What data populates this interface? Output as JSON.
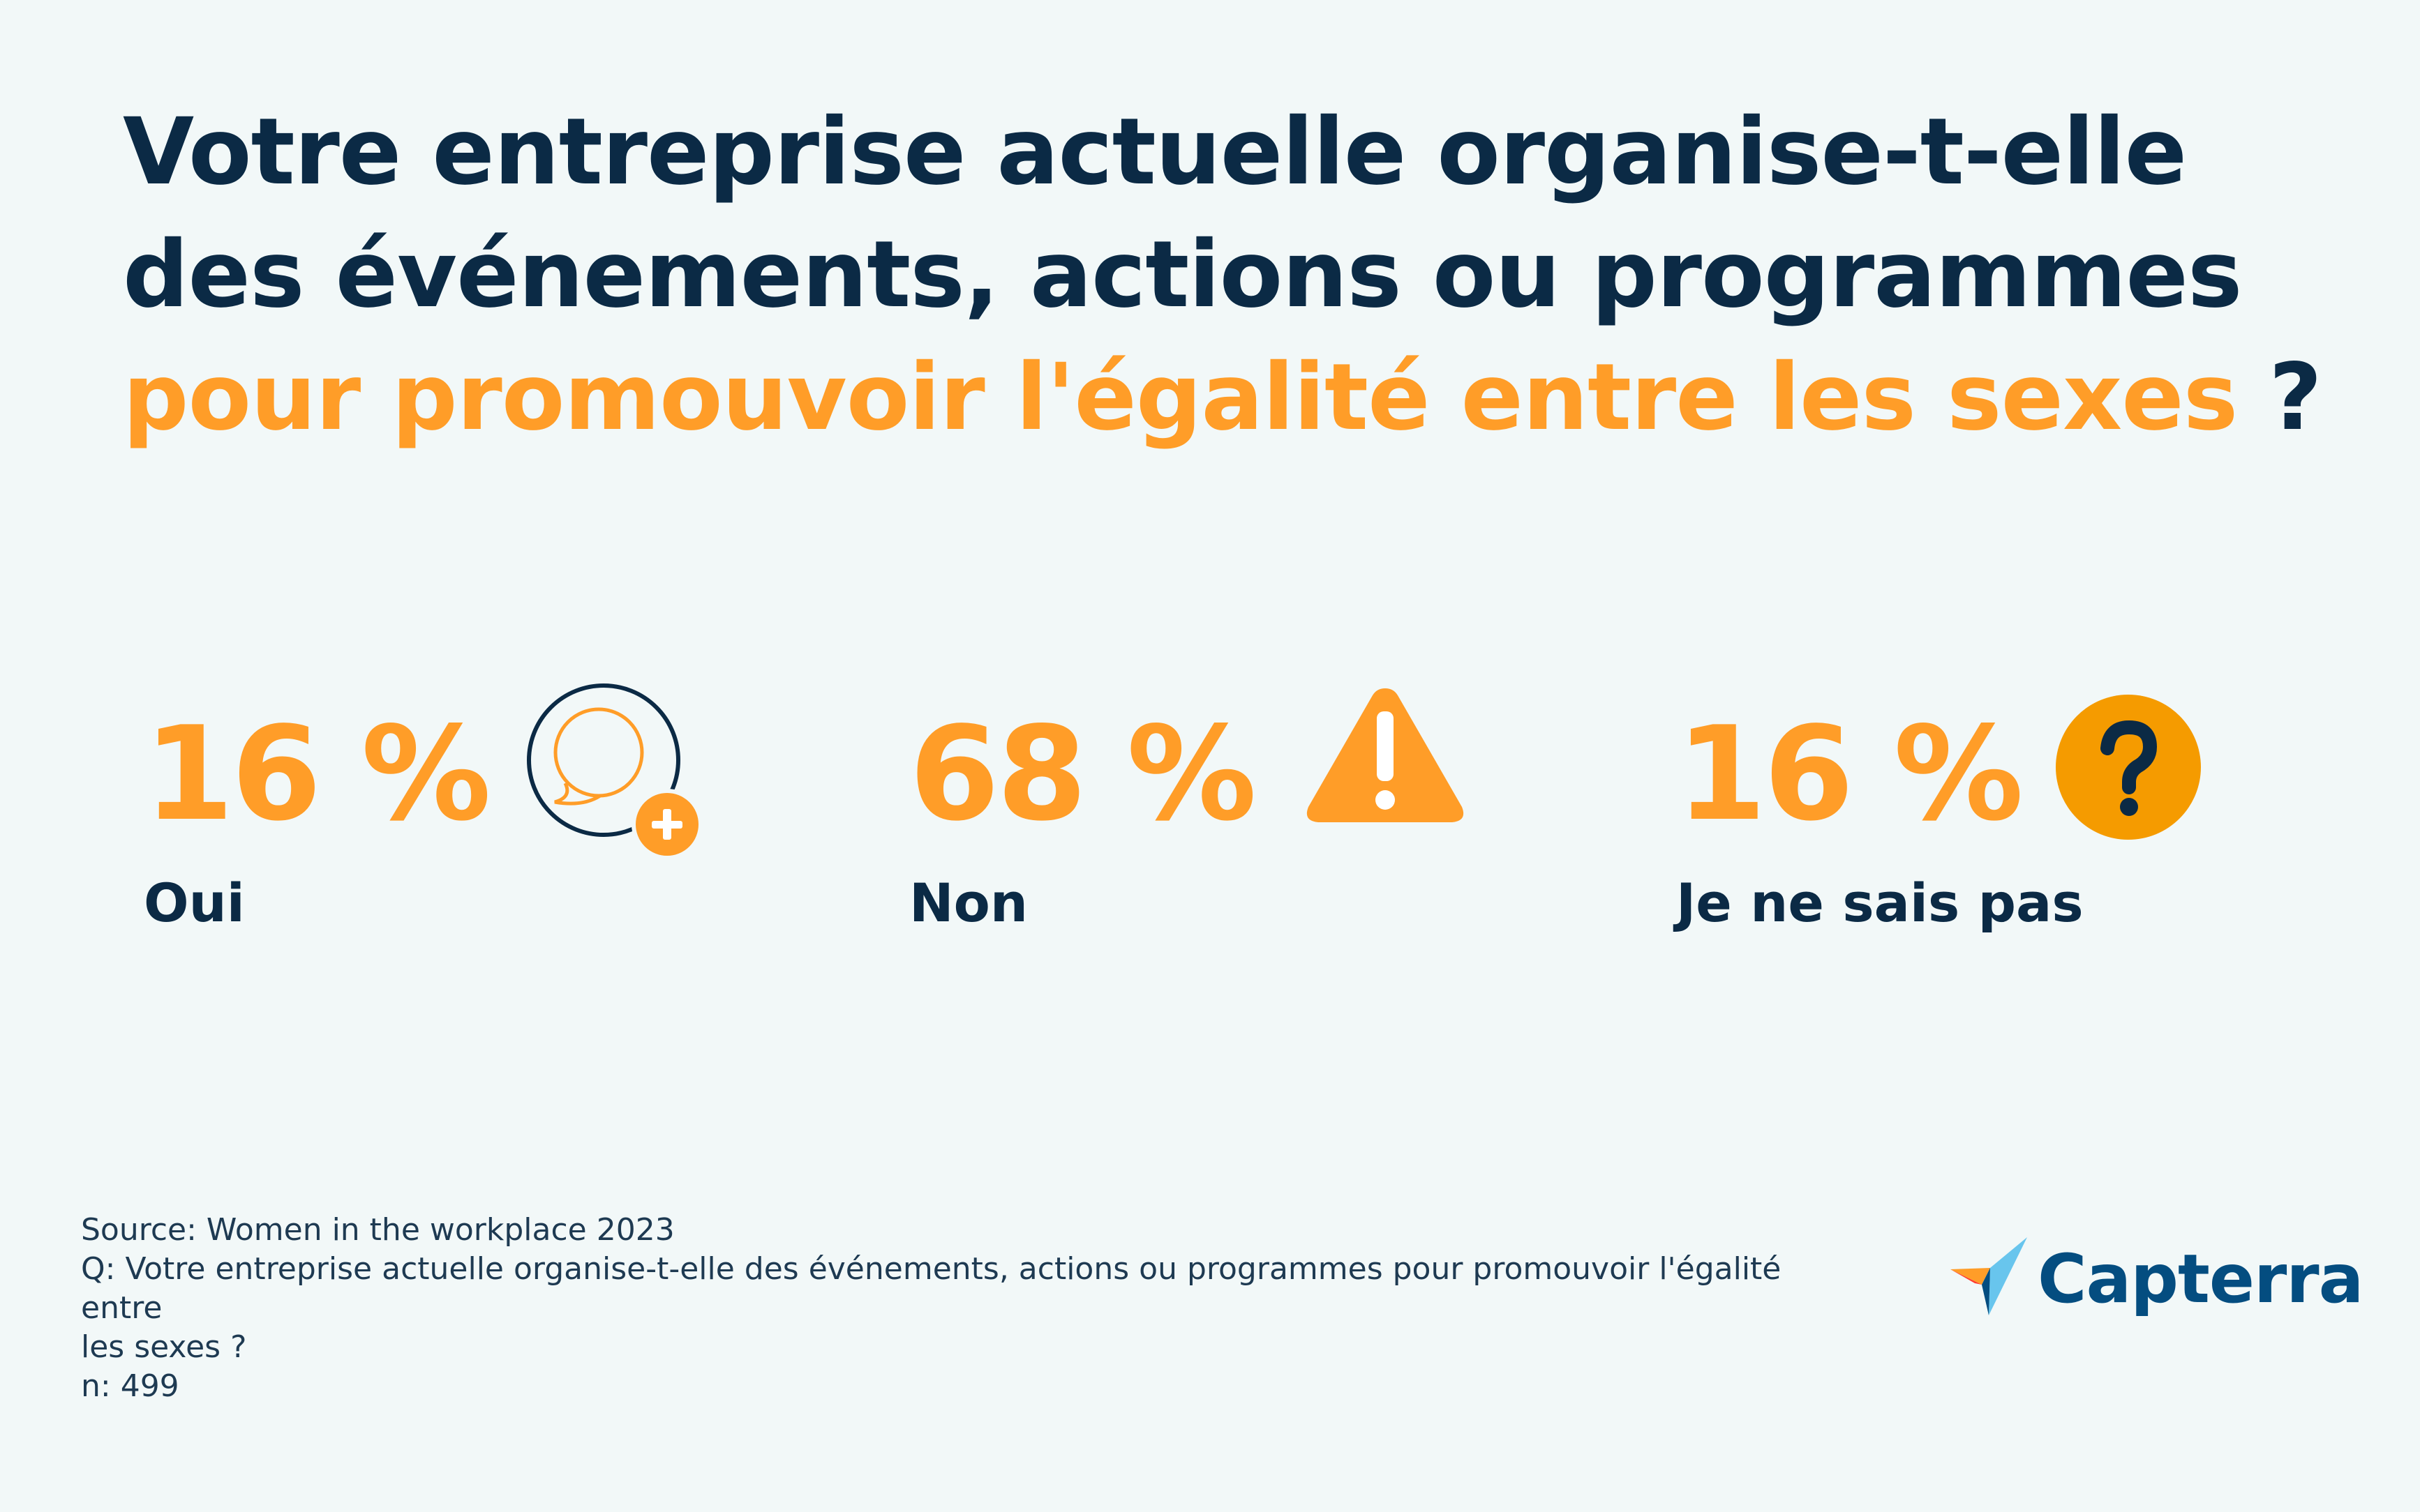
{
  "title": {
    "line1": "Votre entreprise actuelle organise-t-elle",
    "line2": "des événements, actions ou programmes",
    "line3_highlight": "pour promouvoir l'égalité entre les sexes",
    "line3_tail": " ?"
  },
  "stats": [
    {
      "value": "16 %",
      "label": "Oui",
      "icon": "user-add-icon"
    },
    {
      "value": "68 %",
      "label": "Non",
      "icon": "warning-icon"
    },
    {
      "value": "16 %",
      "label": "Je ne sais pas",
      "icon": "question-icon"
    }
  ],
  "footer": {
    "source": "Source: Women in the workplace 2023",
    "question_line1": "Q: Votre entreprise actuelle organise-t-elle des événements, actions ou programmes pour promouvoir l'égalité entre",
    "question_line2": "les sexes ?",
    "sample": "n: 499"
  },
  "logo": {
    "text": "Capterra"
  },
  "colors": {
    "background": "#f2f8f8",
    "navy": "#0b2a45",
    "orange": "#ff9d28",
    "question_circle": "#f59b00",
    "logo_blue": "#044d80"
  }
}
